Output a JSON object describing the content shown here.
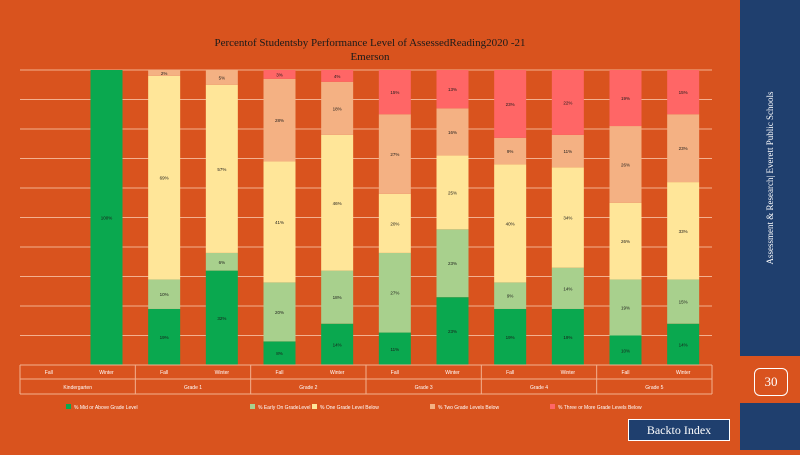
{
  "page": {
    "title_line1": "Percentof Studentsby Performance  Level of AssessedReading2020    -21",
    "title_line2": "Emerson",
    "sidebar_text": "Assessment  & Research|   Everett  Public Schools",
    "page_number": "30",
    "back_button": "Backto Index"
  },
  "colors": {
    "background": "#d9531e",
    "sidebar": "#1f3f6e",
    "mid_or_above": "#0aa84f",
    "early_on": "#a8d08d",
    "one_below": "#ffe699",
    "two_below": "#f4b183",
    "three_below": "#ff6666"
  },
  "chart_data": {
    "type": "bar",
    "stacked": true,
    "ylim": [
      0,
      100
    ],
    "grid": true,
    "legend_position": "bottom",
    "categories": [
      {
        "season": "Fall",
        "grade": "Kindergarten"
      },
      {
        "season": "Winter",
        "grade": "Kindergarten"
      },
      {
        "season": "Fall",
        "grade": "Grade 1"
      },
      {
        "season": "Winter",
        "grade": "Grade 1"
      },
      {
        "season": "Fall",
        "grade": "Grade 2"
      },
      {
        "season": "Winter",
        "grade": "Grade 2"
      },
      {
        "season": "Fall",
        "grade": "Grade 3"
      },
      {
        "season": "Winter",
        "grade": "Grade 3"
      },
      {
        "season": "Fall",
        "grade": "Grade 4"
      },
      {
        "season": "Winter",
        "grade": "Grade 4"
      },
      {
        "season": "Fall",
        "grade": "Grade 5"
      },
      {
        "season": "Winter",
        "grade": "Grade 5"
      }
    ],
    "grade_labels": [
      {
        "name": "Kindergarten",
        "col_span": [
          0,
          1
        ]
      },
      {
        "name": "Grade   1",
        "col_span": [
          2,
          3
        ]
      },
      {
        "name": "Grade   2",
        "col_span": [
          4,
          5
        ]
      },
      {
        "name": "Grade   3",
        "col_span": [
          6,
          7
        ]
      },
      {
        "name": "Grade   4",
        "col_span": [
          8,
          9
        ]
      },
      {
        "name": "Grade   5",
        "col_span": [
          10,
          11
        ]
      }
    ],
    "season_labels": [
      "Fall",
      "Winter"
    ],
    "series": [
      {
        "name": "%  Mid   or Above   Grade    Level",
        "color": "#0aa84f",
        "values": [
          null,
          100,
          19,
          32,
          8,
          14,
          11,
          23,
          19,
          19,
          10,
          14
        ]
      },
      {
        "name": "%   Early    On  GradeLevel",
        "color": "#a8d08d",
        "values": [
          null,
          0,
          10,
          6,
          20,
          18,
          27,
          23,
          9,
          14,
          19,
          15
        ]
      },
      {
        "name": "%  One   Grade    Level   Below",
        "color": "#ffe699",
        "values": [
          null,
          0,
          69,
          57,
          41,
          46,
          20,
          25,
          40,
          34,
          26,
          33
        ]
      },
      {
        "name": "%  Two   Grade    Levels   Below",
        "color": "#f4b183",
        "values": [
          null,
          0,
          2,
          5,
          28,
          18,
          27,
          16,
          9,
          11,
          26,
          23
        ]
      },
      {
        "name": "%  Three   or  More   Grade    Levels   Below",
        "color": "#ff6666",
        "values": [
          null,
          0,
          0,
          0,
          3,
          4,
          15,
          13,
          23,
          22,
          19,
          15
        ]
      }
    ]
  }
}
